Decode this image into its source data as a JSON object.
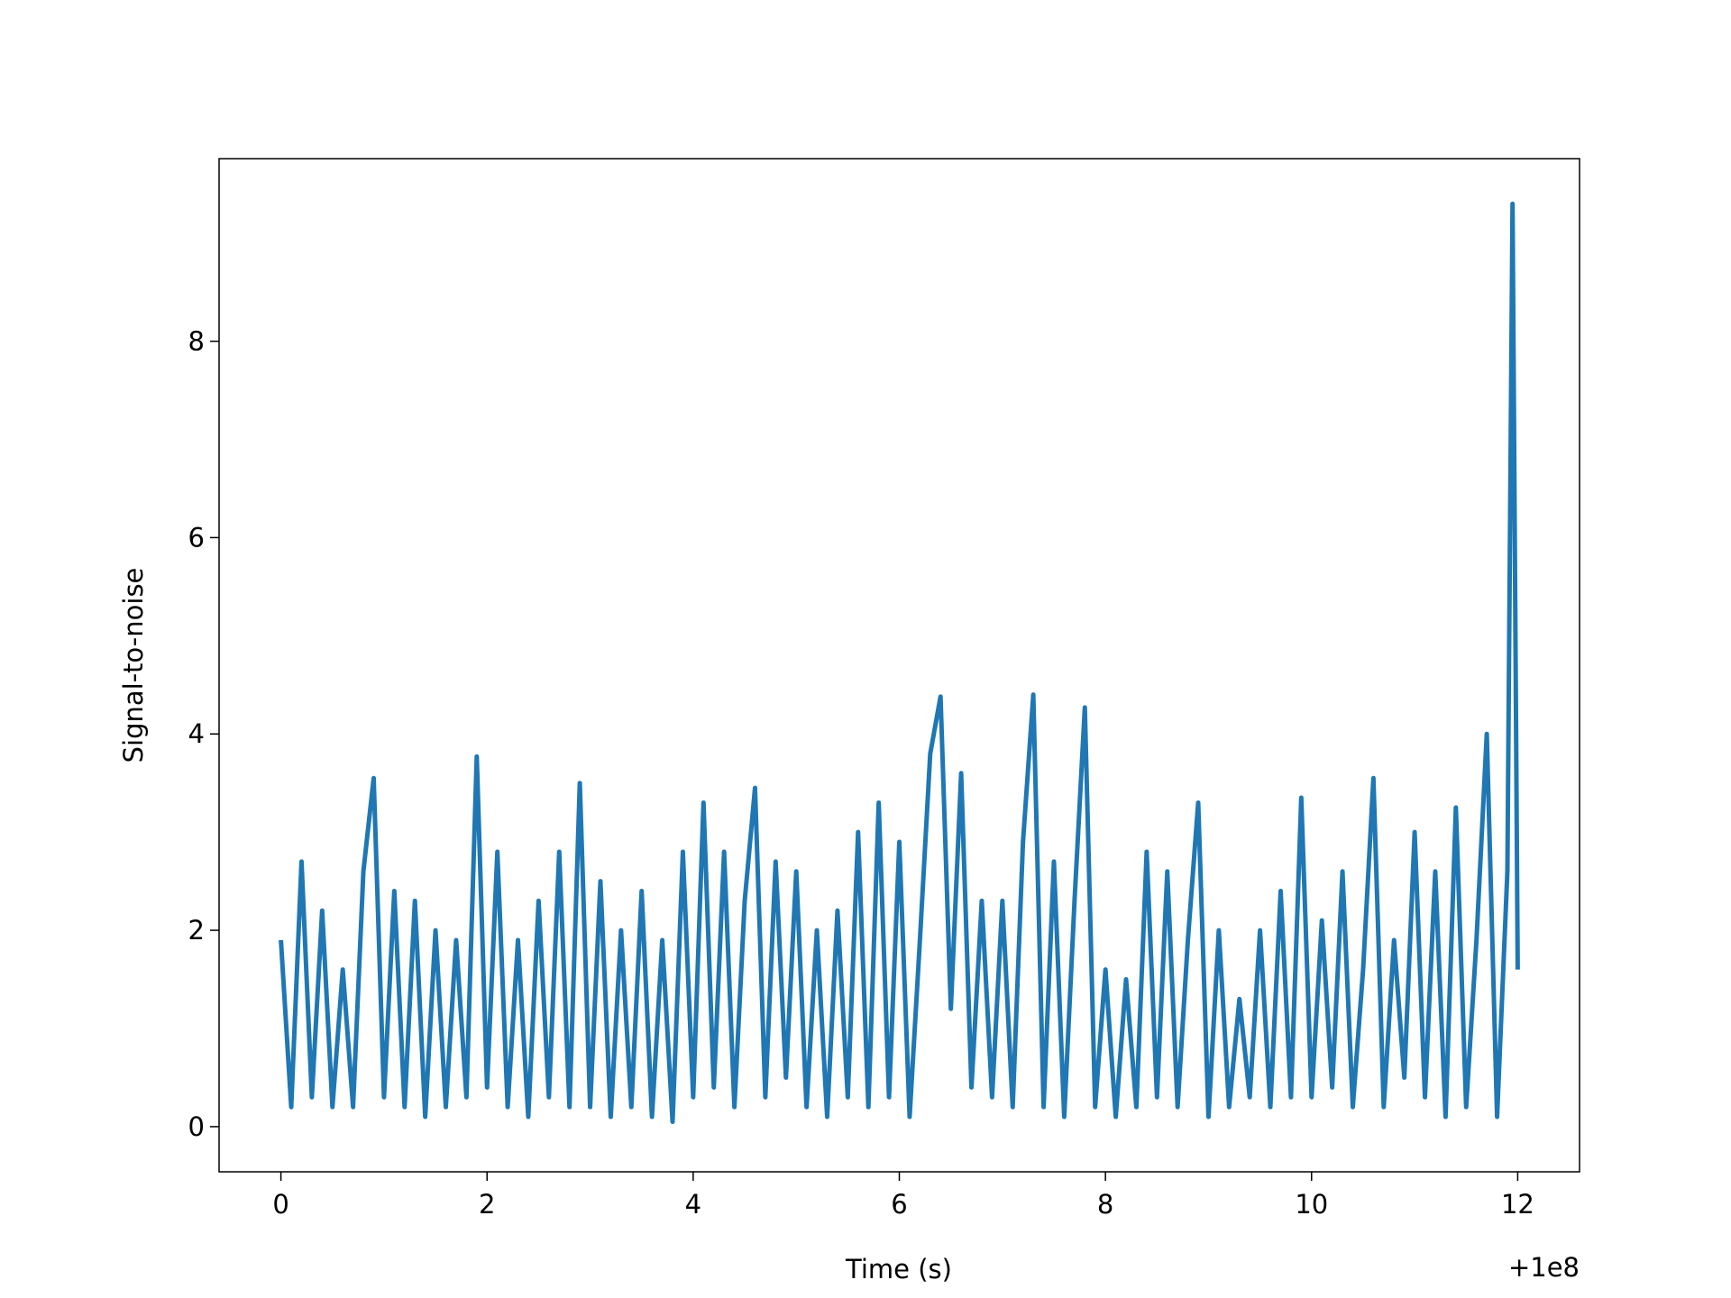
{
  "chart_data": {
    "type": "line",
    "xlabel": "Time (s)",
    "ylabel": "Signal-to-noise",
    "x_offset_label": "+1e8",
    "x": [
      0.0,
      0.1,
      0.2,
      0.3,
      0.4,
      0.5,
      0.6,
      0.7,
      0.8,
      0.9,
      1.0,
      1.1,
      1.2,
      1.3,
      1.4,
      1.5,
      1.6,
      1.7,
      1.8,
      1.9,
      2.0,
      2.1,
      2.2,
      2.3,
      2.4,
      2.5,
      2.6,
      2.7,
      2.8,
      2.9,
      3.0,
      3.1,
      3.2,
      3.3,
      3.4,
      3.5,
      3.6,
      3.7,
      3.8,
      3.9,
      4.0,
      4.1,
      4.2,
      4.3,
      4.4,
      4.5,
      4.6,
      4.7,
      4.8,
      4.9,
      5.0,
      5.1,
      5.2,
      5.3,
      5.4,
      5.5,
      5.6,
      5.7,
      5.8,
      5.9,
      6.0,
      6.1,
      6.2,
      6.3,
      6.4,
      6.5,
      6.6,
      6.7,
      6.8,
      6.9,
      7.0,
      7.1,
      7.2,
      7.3,
      7.4,
      7.5,
      7.6,
      7.7,
      7.8,
      7.9,
      8.0,
      8.1,
      8.2,
      8.3,
      8.4,
      8.5,
      8.6,
      8.7,
      8.8,
      8.9,
      9.0,
      9.1,
      9.2,
      9.3,
      9.4,
      9.5,
      9.6,
      9.7,
      9.8,
      9.9,
      10.0,
      10.1,
      10.2,
      10.3,
      10.4,
      10.5,
      10.6,
      10.7,
      10.8,
      10.9,
      11.0,
      11.1,
      11.2,
      11.3,
      11.4,
      11.5,
      11.6,
      11.7,
      11.8,
      11.9,
      11.95,
      12.0
    ],
    "series": [
      {
        "color": "#1f77b4",
        "values": [
          1.9,
          0.2,
          2.7,
          0.3,
          2.2,
          0.2,
          1.6,
          0.2,
          2.6,
          3.55,
          0.3,
          2.4,
          0.2,
          2.3,
          0.1,
          2.0,
          0.2,
          1.9,
          0.3,
          3.77,
          0.4,
          2.8,
          0.2,
          1.9,
          0.1,
          2.3,
          0.3,
          2.8,
          0.2,
          3.5,
          0.2,
          2.5,
          0.1,
          2.0,
          0.2,
          2.4,
          0.1,
          1.9,
          0.05,
          2.8,
          0.3,
          3.3,
          0.4,
          2.8,
          0.2,
          2.3,
          3.45,
          0.3,
          2.7,
          0.5,
          2.6,
          0.2,
          2.0,
          0.1,
          2.2,
          0.3,
          3.0,
          0.2,
          3.3,
          0.3,
          2.9,
          0.1,
          1.9,
          3.8,
          4.38,
          1.2,
          3.6,
          0.4,
          2.3,
          0.3,
          2.3,
          0.2,
          2.9,
          4.4,
          0.2,
          2.7,
          0.1,
          2.3,
          4.27,
          0.2,
          1.6,
          0.1,
          1.5,
          0.2,
          2.8,
          0.3,
          2.6,
          0.2,
          1.9,
          3.3,
          0.1,
          2.0,
          0.2,
          1.3,
          0.3,
          2.0,
          0.2,
          2.4,
          0.3,
          3.35,
          0.3,
          2.1,
          0.4,
          2.6,
          0.2,
          1.6,
          3.55,
          0.2,
          1.9,
          0.5,
          3.0,
          0.3,
          2.6,
          0.1,
          3.25,
          0.2,
          1.9,
          4.0,
          0.1,
          2.6,
          9.4,
          1.6
        ]
      }
    ],
    "xlim": [
      -0.6,
      12.6
    ],
    "xticks": [
      0,
      2,
      4,
      6,
      8,
      10,
      12
    ],
    "ylim": [
      -0.46,
      9.86
    ],
    "yticks": [
      0,
      2,
      4,
      6,
      8
    ]
  }
}
